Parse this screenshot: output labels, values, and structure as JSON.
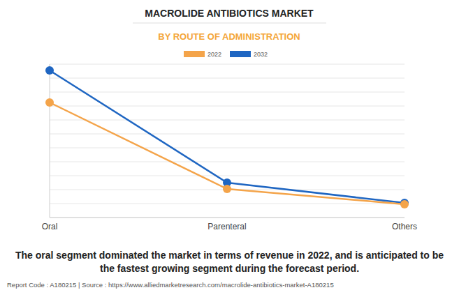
{
  "chart_data": {
    "type": "line",
    "title": "MACROLIDE ANTIBIOTICS MARKET",
    "subtitle": "BY ROUTE OF ADMINISTRATION",
    "categories": [
      "Oral",
      "Parenteral",
      "Others"
    ],
    "series": [
      {
        "name": "2022",
        "color": "#f4a44a",
        "values": [
          8.25,
          2.05,
          0.95
        ],
        "marker": "circle"
      },
      {
        "name": "2032",
        "color": "#1f66c2",
        "values": [
          10.55,
          2.5,
          1.05
        ],
        "marker": "circle"
      }
    ],
    "ylim": [
      0,
      11
    ],
    "yticks": [
      0,
      1,
      2,
      3,
      4,
      5,
      6,
      7,
      8,
      9,
      10,
      11
    ],
    "grid": true,
    "legend": "top",
    "tick_labels": "x",
    "annotations": [
      "The oral segment dominated the market in terms of revenue in 2022, and is anticipated to be the fastest growing segment during the forecast period.",
      "Report Code : A180215  |  Source : https://www.alliedmarketresearch.com/macrolide-antibiotics-market-A180215"
    ]
  }
}
